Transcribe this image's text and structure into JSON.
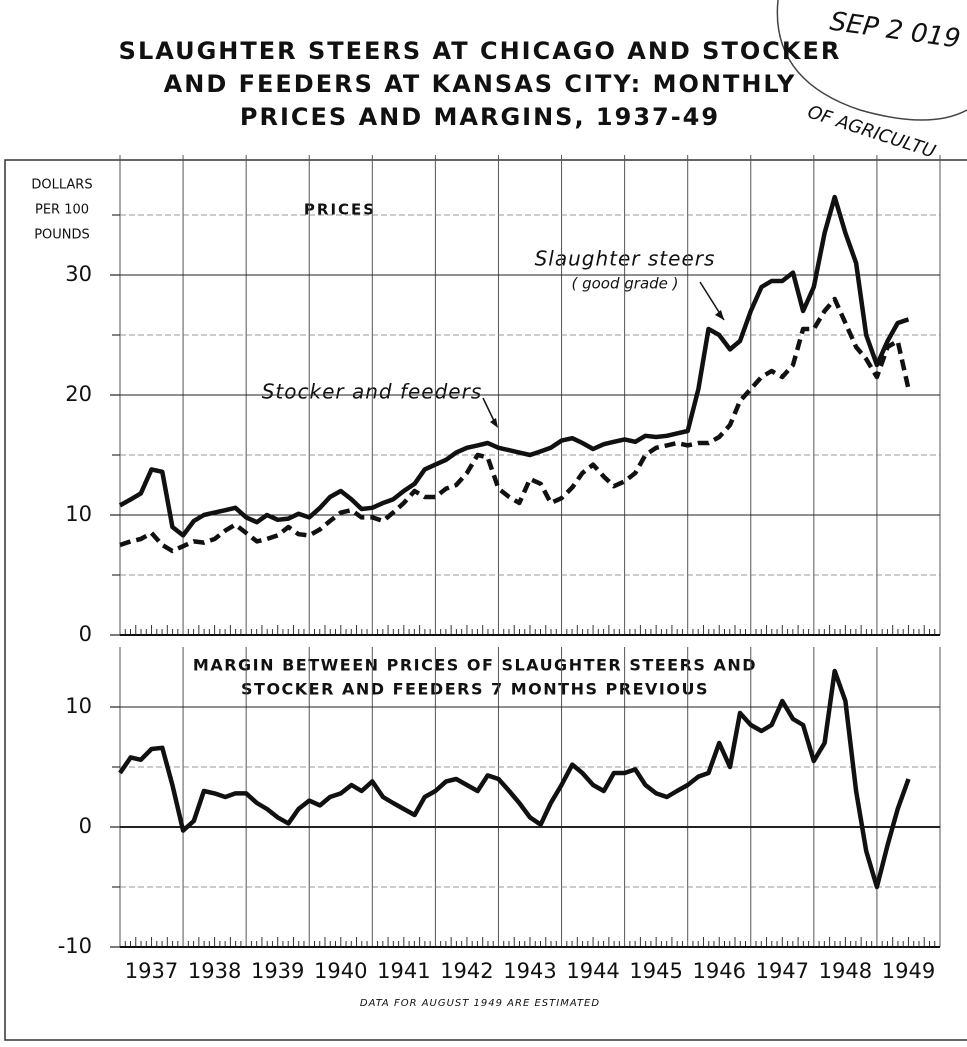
{
  "title_lines": [
    "SLAUGHTER STEERS AT CHICAGO AND STOCKER",
    "AND FEEDERS AT KANSAS CITY: MONTHLY",
    "PRICES AND MARGINS, 1937-49"
  ],
  "stamp": {
    "date": "SEP 2 019",
    "text": "OF AGRICULTU"
  },
  "chart_data": [
    {
      "type": "line",
      "ylabel_lines": [
        "DOLLARS",
        "PER 100",
        "POUNDS"
      ],
      "panel_label": "PRICES",
      "annotations": [
        {
          "text": "Slaughter steers",
          "sub": "( good grade )"
        },
        {
          "text": "Stocker and feeders"
        }
      ],
      "x": [
        1937,
        1937.17,
        1937.33,
        1937.5,
        1937.67,
        1937.83,
        1938,
        1938.17,
        1938.33,
        1938.5,
        1938.67,
        1938.83,
        1939,
        1939.17,
        1939.33,
        1939.5,
        1939.67,
        1939.83,
        1940,
        1940.17,
        1940.33,
        1940.5,
        1940.67,
        1940.83,
        1941,
        1941.17,
        1941.33,
        1941.5,
        1941.67,
        1941.83,
        1942,
        1942.17,
        1942.33,
        1942.5,
        1942.67,
        1942.83,
        1943,
        1943.17,
        1943.33,
        1943.5,
        1943.67,
        1943.83,
        1944,
        1944.17,
        1944.33,
        1944.5,
        1944.67,
        1944.83,
        1945,
        1945.17,
        1945.33,
        1945.5,
        1945.67,
        1945.83,
        1946,
        1946.17,
        1946.33,
        1946.5,
        1946.67,
        1946.83,
        1947,
        1947.17,
        1947.33,
        1947.5,
        1947.67,
        1947.83,
        1948,
        1948.17,
        1948.33,
        1948.5,
        1948.67,
        1948.83,
        1949,
        1949.17,
        1949.33,
        1949.5
      ],
      "series": [
        {
          "name": "Slaughter steers",
          "color": "#111111",
          "dash": false,
          "values": [
            10.8,
            11.3,
            11.8,
            13.8,
            13.6,
            9.0,
            8.3,
            9.5,
            10,
            10.2,
            10.4,
            10.6,
            9.8,
            9.4,
            10.0,
            9.6,
            9.7,
            10.1,
            9.8,
            10.6,
            11.5,
            12.0,
            11.3,
            10.5,
            10.6,
            11.0,
            11.3,
            12.0,
            12.6,
            13.8,
            14.2,
            14.6,
            15.2,
            15.6,
            15.8,
            16.0,
            15.6,
            15.4,
            15.2,
            15.0,
            15.3,
            15.6,
            16.2,
            16.4,
            16.0,
            15.5,
            15.9,
            16.1,
            16.3,
            16.1,
            16.6,
            16.5,
            16.6,
            16.8,
            17.0,
            20.5,
            25.5,
            25.0,
            23.8,
            24.5,
            27.0,
            29.0,
            29.5,
            29.5,
            30.2,
            27.0,
            29.0,
            33.5,
            36.5,
            33.5,
            31.0,
            25.0,
            22.5,
            24.5,
            26.0,
            26.3
          ]
        },
        {
          "name": "Stocker and feeders",
          "color": "#111111",
          "dash": true,
          "values": [
            7.5,
            7.8,
            8.0,
            8.5,
            7.5,
            7.0,
            7.4,
            7.8,
            7.7,
            8.0,
            8.7,
            9.2,
            8.5,
            7.8,
            8.0,
            8.3,
            9.0,
            8.4,
            8.3,
            8.8,
            9.5,
            10.2,
            10.4,
            9.8,
            9.8,
            9.5,
            10.2,
            11.0,
            12.0,
            11.5,
            11.5,
            12.2,
            12.5,
            13.5,
            15.0,
            14.8,
            12.2,
            11.5,
            11.0,
            13.0,
            12.6,
            11.0,
            11.4,
            12.3,
            13.5,
            14.2,
            13.2,
            12.4,
            12.8,
            13.5,
            15.0,
            15.6,
            15.8,
            16.0,
            15.8,
            16.0,
            16.0,
            16.5,
            17.5,
            19.5,
            20.5,
            21.5,
            22.0,
            21.5,
            22.5,
            25.5,
            25.5,
            27.0,
            28.0,
            26.0,
            24.0,
            23.0,
            21.5,
            24.0,
            24.5,
            20.5
          ]
        }
      ],
      "xlim": [
        1937,
        1950
      ],
      "xgrid": [
        1937,
        1938,
        1939,
        1940,
        1941,
        1942,
        1943,
        1944,
        1945,
        1946,
        1947,
        1948,
        1949,
        1950
      ],
      "ylim": [
        0,
        40
      ],
      "yticks": [
        0,
        10,
        20,
        30
      ],
      "minor_yticks": [
        5,
        15,
        25,
        35
      ],
      "grid": true
    },
    {
      "type": "line",
      "panel_title_lines": [
        "MARGIN BETWEEN PRICES OF SLAUGHTER STEERS AND",
        "STOCKER AND FEEDERS 7 MONTHS PREVIOUS"
      ],
      "footnote": "DATA FOR AUGUST 1949 ARE ESTIMATED",
      "x": [
        1937,
        1937.17,
        1937.33,
        1937.5,
        1937.67,
        1937.83,
        1938,
        1938.17,
        1938.33,
        1938.5,
        1938.67,
        1938.83,
        1939,
        1939.17,
        1939.33,
        1939.5,
        1939.67,
        1939.83,
        1940,
        1940.17,
        1940.33,
        1940.5,
        1940.67,
        1940.83,
        1941,
        1941.17,
        1941.33,
        1941.5,
        1941.67,
        1941.83,
        1942,
        1942.17,
        1942.33,
        1942.5,
        1942.67,
        1942.83,
        1943,
        1943.17,
        1943.33,
        1943.5,
        1943.67,
        1943.83,
        1944,
        1944.17,
        1944.33,
        1944.5,
        1944.67,
        1944.83,
        1945,
        1945.17,
        1945.33,
        1945.5,
        1945.67,
        1945.83,
        1946,
        1946.17,
        1946.33,
        1946.5,
        1946.67,
        1946.83,
        1947,
        1947.17,
        1947.33,
        1947.5,
        1947.67,
        1947.83,
        1948,
        1948.17,
        1948.33,
        1948.5,
        1948.67,
        1948.83,
        1949,
        1949.17,
        1949.33,
        1949.5
      ],
      "series": [
        {
          "name": "Margin",
          "color": "#111111",
          "dash": false,
          "values": [
            4.5,
            5.8,
            5.6,
            6.5,
            6.6,
            3.5,
            -0.3,
            0.5,
            3.0,
            2.8,
            2.5,
            2.8,
            2.8,
            2.0,
            1.5,
            0.8,
            0.3,
            1.5,
            2.2,
            1.8,
            2.5,
            2.8,
            3.5,
            3.0,
            3.8,
            2.5,
            2.0,
            1.5,
            1.0,
            2.5,
            3.0,
            3.8,
            4.0,
            3.5,
            3.0,
            4.3,
            4.0,
            3.0,
            2.0,
            0.8,
            0.2,
            2.0,
            3.5,
            5.2,
            4.5,
            3.5,
            3.0,
            4.5,
            4.5,
            4.8,
            3.5,
            2.8,
            2.5,
            3.0,
            3.5,
            4.2,
            4.5,
            7.0,
            5.0,
            9.5,
            8.5,
            8.0,
            8.5,
            10.5,
            9.0,
            8.5,
            5.5,
            7.0,
            13.0,
            10.5,
            3.0,
            -2.0,
            -5.0,
            -1.5,
            1.5,
            4.0
          ]
        }
      ],
      "xlim": [
        1937,
        1950
      ],
      "xgrid": [
        1937,
        1938,
        1939,
        1940,
        1941,
        1942,
        1943,
        1944,
        1945,
        1946,
        1947,
        1948,
        1949,
        1950
      ],
      "xticks": [
        {
          "value": 1937.5,
          "label": "1937"
        },
        {
          "value": 1938.5,
          "label": "1938"
        },
        {
          "value": 1939.5,
          "label": "1939"
        },
        {
          "value": 1940.5,
          "label": "1940"
        },
        {
          "value": 1941.5,
          "label": "1941"
        },
        {
          "value": 1942.5,
          "label": "1942"
        },
        {
          "value": 1943.5,
          "label": "1943"
        },
        {
          "value": 1944.5,
          "label": "1944"
        },
        {
          "value": 1945.5,
          "label": "1945"
        },
        {
          "value": 1946.5,
          "label": "1946"
        },
        {
          "value": 1947.5,
          "label": "1947"
        },
        {
          "value": 1948.5,
          "label": "1948"
        },
        {
          "value": 1949.5,
          "label": "1949"
        }
      ],
      "ylim": [
        -10,
        15
      ],
      "yticks": [
        -10,
        0,
        10
      ],
      "minor_yticks": [
        -5,
        5
      ],
      "grid": true
    }
  ]
}
